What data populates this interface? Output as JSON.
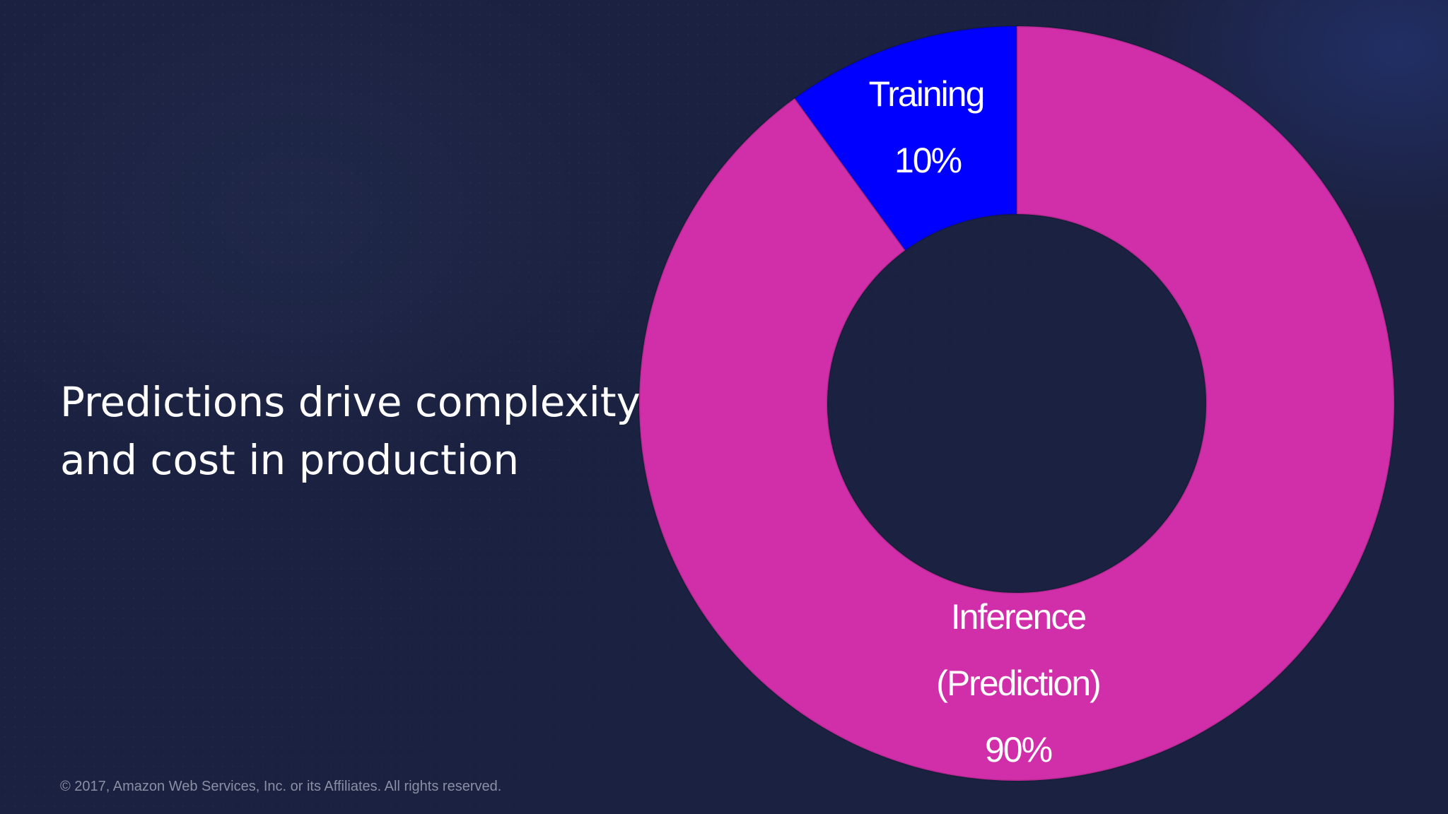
{
  "slide": {
    "headline_line1": "Predictions drive complexity",
    "headline_line2": "and cost in production",
    "copyright": "© 2017, Amazon Web Services, Inc. or its Affiliates. All rights reserved.",
    "background_color": "#1b2140"
  },
  "chart_data": {
    "type": "pie",
    "donut": true,
    "slices": [
      {
        "label_lines": [
          "Inference",
          "(Prediction)",
          "90%"
        ],
        "value": 90,
        "color": "#d12fa9"
      },
      {
        "label_lines": [
          "Training",
          "10%"
        ],
        "value": 10,
        "color": "#0000ff"
      }
    ]
  }
}
